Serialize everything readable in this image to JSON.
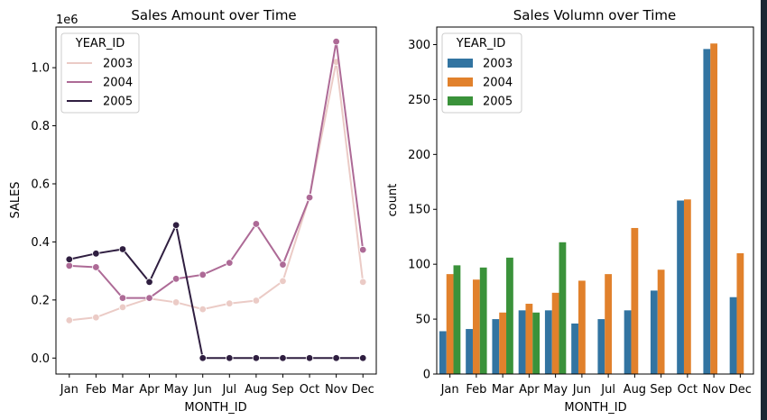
{
  "chart_data": [
    {
      "type": "line",
      "title": "Sales Amount over Time",
      "xlabel": "MONTH_ID",
      "ylabel": "SALES",
      "y_offset_label": "1e6",
      "categories": [
        "Jan",
        "Feb",
        "Mar",
        "Apr",
        "May",
        "Jun",
        "Jul",
        "Aug",
        "Sep",
        "Oct",
        "Nov",
        "Dec"
      ],
      "ylim": [
        -0.055,
        1.14
      ],
      "yticks": [
        0.0,
        0.2,
        0.4,
        0.6,
        0.8,
        1.0
      ],
      "ytick_labels": [
        "0.0",
        "0.2",
        "0.4",
        "0.6",
        "0.8",
        "1.0"
      ],
      "grid": false,
      "legend": {
        "title": "YEAR_ID",
        "placement": "top-left"
      },
      "series": [
        {
          "name": "2003",
          "color": "#ebcbc6",
          "values": [
            0.13,
            0.14,
            0.175,
            0.205,
            0.192,
            0.168,
            0.188,
            0.198,
            0.265,
            0.555,
            1.02,
            0.262
          ]
        },
        {
          "name": "2004",
          "color": "#ad6a96",
          "values": [
            0.318,
            0.313,
            0.207,
            0.207,
            0.273,
            0.287,
            0.328,
            0.462,
            0.322,
            0.553,
            1.09,
            0.373
          ]
        },
        {
          "name": "2005",
          "color": "#2f1e40",
          "values": [
            0.34,
            0.36,
            0.375,
            0.262,
            0.458,
            0.0,
            0.0,
            0.0,
            0.0,
            0.0,
            0.0,
            0.0
          ]
        }
      ]
    },
    {
      "type": "bar",
      "title": "Sales Volumn over Time",
      "xlabel": "MONTH_ID",
      "ylabel": "count",
      "categories": [
        "Jan",
        "Feb",
        "Mar",
        "Apr",
        "May",
        "Jun",
        "Jul",
        "Aug",
        "Sep",
        "Oct",
        "Nov",
        "Dec"
      ],
      "ylim": [
        0,
        316
      ],
      "yticks": [
        0,
        50,
        100,
        150,
        200,
        250,
        300
      ],
      "grid": false,
      "legend": {
        "title": "YEAR_ID",
        "placement": "top-left"
      },
      "series": [
        {
          "name": "2003",
          "color": "#3274a1",
          "values": [
            39,
            41,
            50,
            58,
            58,
            46,
            50,
            58,
            76,
            158,
            296,
            70
          ]
        },
        {
          "name": "2004",
          "color": "#e1812c",
          "values": [
            91,
            86,
            56,
            64,
            74,
            85,
            91,
            133,
            95,
            159,
            301,
            110
          ]
        },
        {
          "name": "2005",
          "color": "#3a923a",
          "values": [
            99,
            97,
            106,
            56,
            120,
            null,
            null,
            null,
            null,
            null,
            null,
            null
          ]
        }
      ]
    }
  ]
}
